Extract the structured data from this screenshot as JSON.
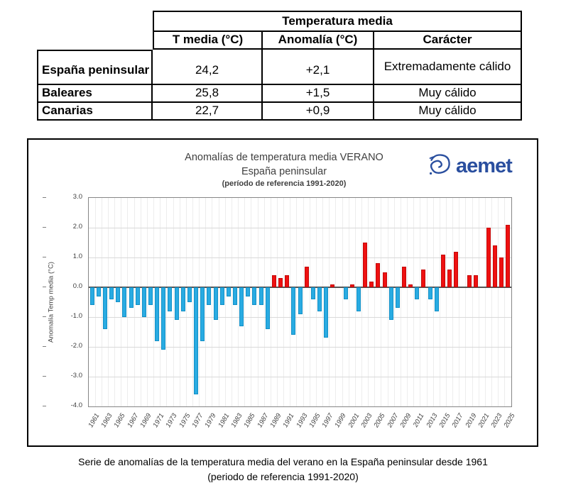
{
  "summary_table": {
    "group_header": "Temperatura media",
    "columns": [
      "T media (°C)",
      "Anomalía (°C)",
      "Carácter"
    ],
    "rows": [
      {
        "region": "España peninsular",
        "t_media": "24,2",
        "anomalia": "+2,1",
        "caracter": "Extremadamente cálido"
      },
      {
        "region": "Baleares",
        "t_media": "25,8",
        "anomalia": "+1,5",
        "caracter": "Muy cálido"
      },
      {
        "region": "Canarias",
        "t_media": "22,7",
        "anomalia": "+0,9",
        "caracter": "Muy cálido"
      }
    ]
  },
  "chart": {
    "title": "Anomalías de temperatura media VERANO",
    "subtitle": "España peninsular",
    "reference_note": "(período de referencia 1991-2020)",
    "ylabel": "Anomalía Temp media (°C)",
    "logo": {
      "text": "aemet",
      "color": "#2a4f9f",
      "icon": "aemet-spain-swirl-icon"
    }
  },
  "chart_data": {
    "type": "bar",
    "title": "Anomalías de temperatura media VERANO — España peninsular (período de referencia 1991-2020)",
    "xlabel": "",
    "ylabel": "Anomalía Temp media (°C)",
    "ylim": [
      -4.0,
      3.0
    ],
    "ytick_step": 1.0,
    "grid": true,
    "legend": false,
    "positive_color": "#ee1111",
    "negative_color": "#29abe2",
    "x": [
      1961,
      1962,
      1963,
      1964,
      1965,
      1966,
      1967,
      1968,
      1969,
      1970,
      1971,
      1972,
      1973,
      1974,
      1975,
      1976,
      1977,
      1978,
      1979,
      1980,
      1981,
      1982,
      1983,
      1984,
      1985,
      1986,
      1987,
      1988,
      1989,
      1990,
      1991,
      1992,
      1993,
      1994,
      1995,
      1996,
      1997,
      1998,
      1999,
      2000,
      2001,
      2002,
      2003,
      2004,
      2005,
      2006,
      2007,
      2008,
      2009,
      2010,
      2011,
      2012,
      2013,
      2014,
      2015,
      2016,
      2017,
      2018,
      2019,
      2020,
      2021,
      2022,
      2023,
      2024,
      2025
    ],
    "values": [
      -0.6,
      -0.3,
      -1.4,
      -0.4,
      -0.5,
      -1.0,
      -0.7,
      -0.6,
      -1.0,
      -0.6,
      -1.8,
      -2.1,
      -0.8,
      -1.1,
      -0.8,
      -0.5,
      -3.6,
      -1.8,
      -0.6,
      -1.1,
      -0.6,
      -0.3,
      -0.6,
      -1.3,
      -0.3,
      -0.6,
      -0.6,
      -1.4,
      0.4,
      0.3,
      0.4,
      -1.6,
      -0.9,
      0.7,
      -0.4,
      -0.8,
      -1.7,
      0.1,
      0.0,
      -0.4,
      0.1,
      -0.8,
      1.5,
      0.2,
      0.8,
      0.5,
      -1.1,
      -0.7,
      0.7,
      0.1,
      -0.4,
      0.6,
      -0.4,
      -0.8,
      1.1,
      0.6,
      1.2,
      0.0,
      0.4,
      0.4,
      0.0,
      2.0,
      1.4,
      1.0,
      2.1
    ],
    "xtick_labels": [
      1961,
      1963,
      1965,
      1967,
      1969,
      1971,
      1973,
      1975,
      1977,
      1979,
      1981,
      1983,
      1985,
      1987,
      1989,
      1991,
      1993,
      1995,
      1997,
      1999,
      2001,
      2003,
      2005,
      2007,
      2009,
      2011,
      2013,
      2015,
      2017,
      2019,
      2021,
      2023,
      2025
    ]
  },
  "caption": {
    "line1": "Serie de anomalías de la temperatura media del verano en la España peninsular desde 1961",
    "line2": "(periodo de referencia 1991-2020)"
  }
}
